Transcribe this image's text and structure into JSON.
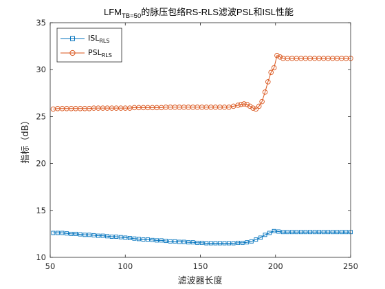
{
  "chart_data": {
    "type": "line",
    "title": {
      "prefix": "LFM",
      "subscript": "TB=50",
      "suffix": "的脉压包络RS-RLS滤波PSL和ISL性能"
    },
    "xlabel": "滤波器长度",
    "ylabel": "指标（dB）",
    "xlim": [
      50,
      250
    ],
    "ylim": [
      10,
      35
    ],
    "xticks": [
      50,
      100,
      150,
      200,
      250
    ],
    "yticks": [
      10,
      15,
      20,
      25,
      30,
      35
    ],
    "grid": false,
    "legend_position": "top-left",
    "series": [
      {
        "legend_main": "ISL",
        "legend_sub": "RLS",
        "color": "#0072BD",
        "marker": "square",
        "x": [
          52,
          55,
          58,
          61,
          64,
          67,
          70,
          73,
          76,
          79,
          82,
          85,
          88,
          91,
          94,
          97,
          100,
          103,
          106,
          109,
          112,
          115,
          118,
          121,
          124,
          127,
          130,
          133,
          136,
          139,
          142,
          145,
          148,
          151,
          154,
          157,
          160,
          163,
          166,
          169,
          172,
          175,
          178,
          181,
          184,
          187,
          190,
          193,
          196,
          199,
          202,
          205,
          208,
          211,
          214,
          217,
          220,
          223,
          226,
          229,
          232,
          235,
          238,
          241,
          244,
          247,
          250
        ],
        "y": [
          12.6,
          12.6,
          12.6,
          12.55,
          12.5,
          12.5,
          12.45,
          12.4,
          12.4,
          12.35,
          12.3,
          12.3,
          12.25,
          12.2,
          12.2,
          12.15,
          12.1,
          12.05,
          12.0,
          11.95,
          11.9,
          11.9,
          11.85,
          11.8,
          11.8,
          11.75,
          11.7,
          11.7,
          11.65,
          11.65,
          11.6,
          11.6,
          11.55,
          11.55,
          11.5,
          11.5,
          11.5,
          11.5,
          11.5,
          11.5,
          11.5,
          11.55,
          11.55,
          11.6,
          11.7,
          11.9,
          12.1,
          12.4,
          12.6,
          12.8,
          12.75,
          12.7,
          12.7,
          12.7,
          12.7,
          12.7,
          12.7,
          12.7,
          12.7,
          12.7,
          12.7,
          12.7,
          12.7,
          12.7,
          12.7,
          12.7,
          12.7
        ]
      },
      {
        "legend_main": "PSL",
        "legend_sub": "RLS",
        "color": "#D95319",
        "marker": "circle",
        "x": [
          52,
          55,
          58,
          61,
          64,
          67,
          70,
          73,
          76,
          79,
          82,
          85,
          88,
          91,
          94,
          97,
          100,
          103,
          106,
          109,
          112,
          115,
          118,
          121,
          124,
          127,
          130,
          133,
          136,
          139,
          142,
          145,
          148,
          151,
          154,
          157,
          160,
          163,
          166,
          169,
          172,
          175,
          177,
          179,
          181,
          183,
          185,
          187,
          189,
          191,
          193,
          195,
          197,
          199,
          201,
          203,
          205,
          208,
          211,
          214,
          217,
          220,
          223,
          226,
          229,
          232,
          235,
          238,
          241,
          244,
          247,
          250
        ],
        "y": [
          25.8,
          25.85,
          25.85,
          25.85,
          25.85,
          25.85,
          25.85,
          25.85,
          25.85,
          25.9,
          25.9,
          25.9,
          25.9,
          25.9,
          25.9,
          25.9,
          25.9,
          25.9,
          25.95,
          25.95,
          25.95,
          25.95,
          25.95,
          25.95,
          25.95,
          26.0,
          26.0,
          26.0,
          26.0,
          26.0,
          26.0,
          26.0,
          26.0,
          26.0,
          26.0,
          26.0,
          26.0,
          26.0,
          26.0,
          26.0,
          26.1,
          26.2,
          26.3,
          26.35,
          26.3,
          26.1,
          25.9,
          25.8,
          26.1,
          26.6,
          27.6,
          28.7,
          29.7,
          30.2,
          31.5,
          31.35,
          31.2,
          31.2,
          31.2,
          31.2,
          31.2,
          31.2,
          31.2,
          31.2,
          31.2,
          31.2,
          31.2,
          31.2,
          31.2,
          31.2,
          31.2,
          31.2
        ]
      }
    ]
  }
}
